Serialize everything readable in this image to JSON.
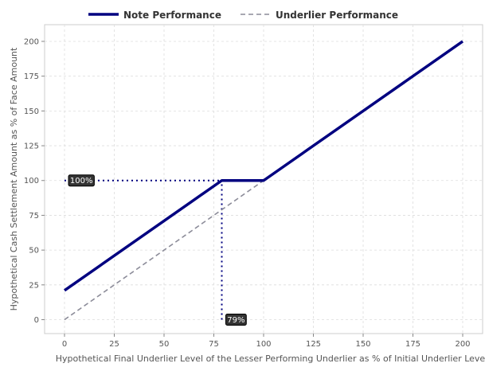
{
  "chart_data": {
    "type": "line",
    "xlabel": "Hypothetical Final Underlier Level of the Lesser Performing Underlier as % of Initial Underlier Level",
    "ylabel": "Hypothetical Cash Settlement Amount as % of Face Amount",
    "xlim": [
      -10,
      210
    ],
    "ylim": [
      -10,
      212
    ],
    "xticks": [
      0,
      25,
      50,
      75,
      100,
      125,
      150,
      175,
      200
    ],
    "yticks": [
      0,
      25,
      50,
      75,
      100,
      125,
      150,
      175,
      200
    ],
    "grid": true,
    "legend_position": "top-center",
    "series": [
      {
        "name": "Note Performance",
        "color": "#000080",
        "style": "solid",
        "x": [
          0,
          79,
          100,
          200
        ],
        "y": [
          21,
          100,
          100,
          200
        ]
      },
      {
        "name": "Underlier Performance",
        "color": "#8c8c99",
        "style": "dashed",
        "x": [
          0,
          200
        ],
        "y": [
          0,
          200
        ]
      }
    ],
    "annotations": [
      {
        "label": "100%",
        "x": 0,
        "y": 100,
        "guide": "horizontal",
        "guide_to_x": 79
      },
      {
        "label": "79%",
        "x": 79,
        "y": 0,
        "guide": "vertical",
        "guide_to_y": 100
      }
    ]
  }
}
